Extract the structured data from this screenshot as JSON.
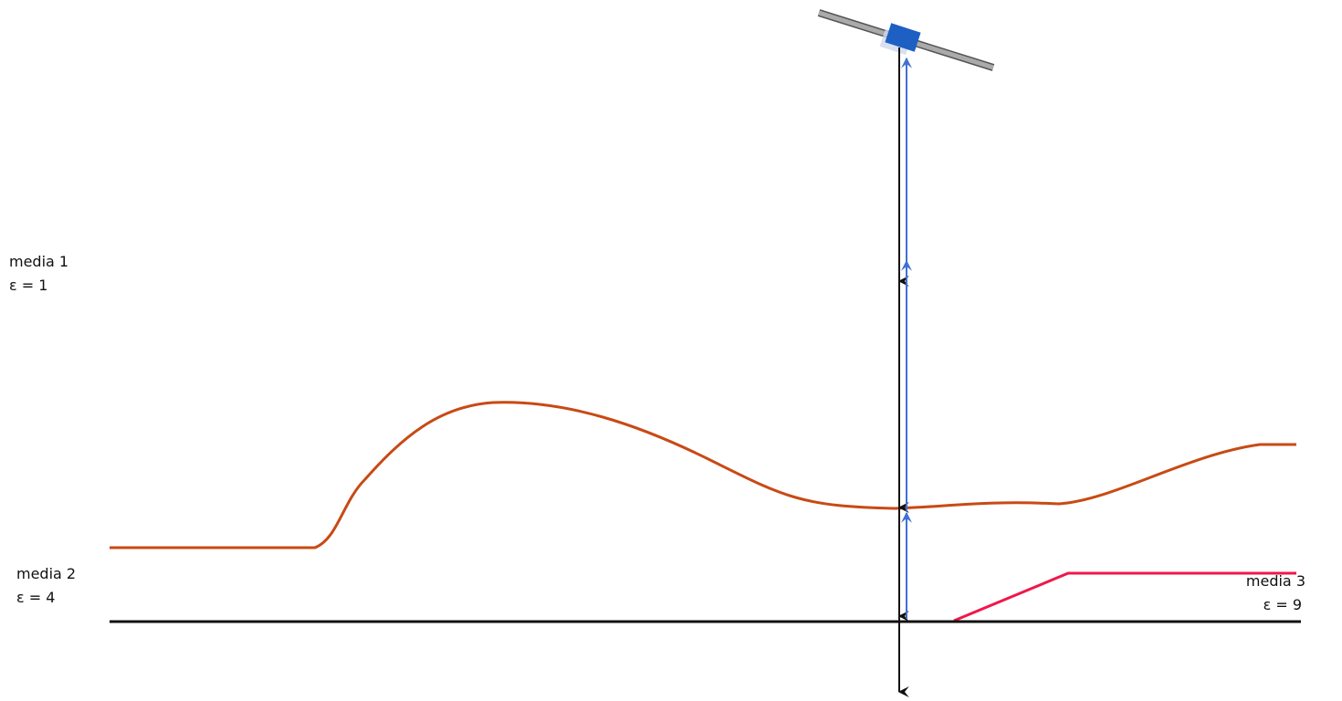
{
  "media": [
    {
      "name": "media 1",
      "permittivity": "ε = 1"
    },
    {
      "name": "media 2",
      "permittivity": "ε = 4"
    },
    {
      "name": "media 3",
      "permittivity": "ε = 9"
    }
  ]
}
